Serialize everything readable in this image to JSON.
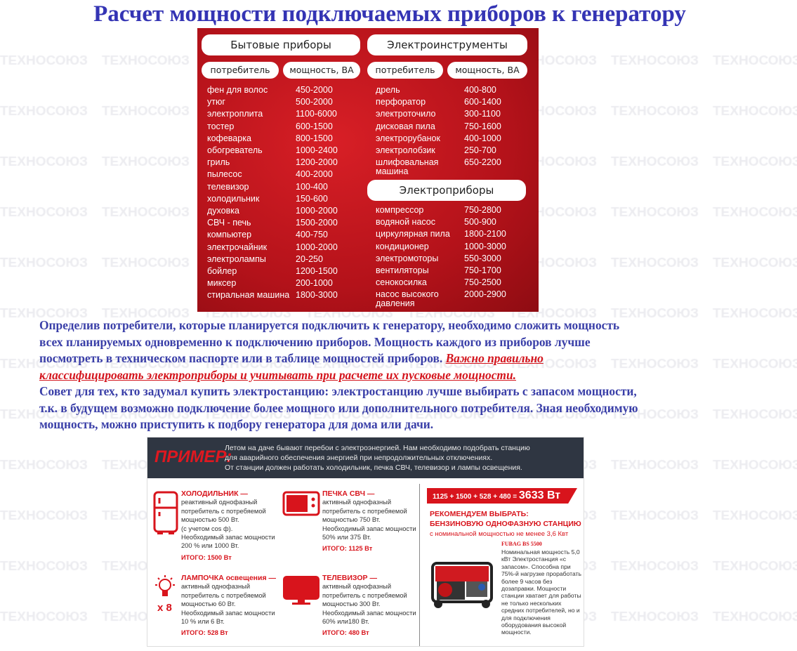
{
  "title": "Расчет мощности подключаемых приборов к генератору",
  "watermark": "ТЕХНОСОЮЗ",
  "table": {
    "household": {
      "heading": "Бытовые приборы",
      "col_consumer": "потребитель",
      "col_power": "мощность, ВА",
      "rows": [
        [
          "фен для волос",
          "450-2000"
        ],
        [
          "утюг",
          "500-2000"
        ],
        [
          "электроплита",
          "1100-6000"
        ],
        [
          "тостер",
          "600-1500"
        ],
        [
          "кофеварка",
          "800-1500"
        ],
        [
          "обогреватель",
          "1000-2400"
        ],
        [
          "гриль",
          "1200-2000"
        ],
        [
          "пылесос",
          "400-2000"
        ],
        [
          "телевизор",
          "100-400"
        ],
        [
          "холодильник",
          "150-600"
        ],
        [
          "духовка",
          "1000-2000"
        ],
        [
          "СВЧ - печь",
          "1500-2000"
        ],
        [
          "компьютер",
          "400-750"
        ],
        [
          "электрочайник",
          "1000-2000"
        ],
        [
          "электролампы",
          "20-250"
        ],
        [
          "бойлер",
          "1200-1500"
        ],
        [
          "миксер",
          "200-1000"
        ],
        [
          "стиральная машина",
          "1800-3000"
        ]
      ]
    },
    "tools": {
      "heading": "Электроинструменты",
      "col_consumer": "потребитель",
      "col_power": "мощность, ВА",
      "rows": [
        [
          "дрель",
          "400-800"
        ],
        [
          "перфоратор",
          "600-1400"
        ],
        [
          "электроточило",
          "300-1100"
        ],
        [
          "дисковая пила",
          "750-1600"
        ],
        [
          "электрорубанок",
          "400-1000"
        ],
        [
          "электролобзик",
          "250-700"
        ],
        [
          "шлифовальная машина",
          "650-2200"
        ]
      ]
    },
    "appliances": {
      "heading": "Электроприборы",
      "rows": [
        [
          "компрессор",
          "750-2800"
        ],
        [
          "водяной насос",
          "500-900"
        ],
        [
          "циркулярная пила",
          "1800-2100"
        ],
        [
          "кондиционер",
          "1000-3000"
        ],
        [
          "электромоторы",
          "550-3000"
        ],
        [
          "вентиляторы",
          "750-1700"
        ],
        [
          "сенокосилка",
          "750-2500"
        ],
        [
          "насос высокого давления",
          "2000-2900"
        ]
      ]
    }
  },
  "paragraph": {
    "line1": "Определив потребители, которые планируется подключить к генератору, необходимо сложить мощность",
    "line2": "всех планируемых одновременно к подключению приборов. Мощность каждого из приборов лучше",
    "line3": "посмотреть в техническом паспорте или в таблице мощностей приборов. ",
    "emph1": "Важно правильно",
    "emph2": "классифицировать электроприборы и учитывать при расчете их пусковые мощности.",
    "line5": "Совет для тех, кто задумал купить электростанцию: электростанцию лучше выбирать с запасом мощности,",
    "line6": "т.к. в будущем возможно подключение более мощного или дополнительного потребителя. Зная необходимую",
    "line7": "мощность, можно приступить к подбору генератора для дома или дачи."
  },
  "example": {
    "label": "ПРИМЕР:",
    "intro1": "Летом на даче бывают перебои с электроэнергией. Нам необходимо подобрать станцию",
    "intro2": "для аварийного обеспечения энергией при непродолжительных отключениях.",
    "intro3": "От станции должен работать холодильник, печка СВЧ, телевизор и лампы освещения.",
    "cards": [
      {
        "title": "ХОЛОДИЛЬНИК —",
        "lines": [
          "реактивный однофазный",
          "потребитель с потребяемой",
          "мощностью 500 Вт.",
          "(с учетом cos ф).",
          "Необходимый запас мощности",
          "200 % или 1000 Вт."
        ],
        "total": "ИТОГО: 1500 Вт"
      },
      {
        "title": "ПЕЧКА СВЧ —",
        "lines": [
          "активный однофазный",
          "потребитель с потребяемой",
          "мощностью 750 Вт.",
          "Необходимый запас мощности",
          "50% или 375 Вт."
        ],
        "total": "ИТОГО: 1125 Вт"
      },
      {
        "title": "ЛАМПОЧКА освещения —",
        "lines": [
          "активный однофазный",
          "потребитель с потребяемой",
          "мощностью 60 Вт.",
          "Необходимый запас мощности",
          "10 % или 6 Вт."
        ],
        "total": "ИТОГО: 528 Вт",
        "multiplier": "x 8"
      },
      {
        "title": "ТЕЛЕВИЗОР —",
        "lines": [
          "активный однофазный",
          "потребитель с потребяемой",
          "мощностью 300 Вт.",
          "Необходимый запас мощности",
          "60% или180 Вт."
        ],
        "total": "ИТОГО: 480 Вт"
      }
    ],
    "sum_formula": "1125 + 1500 + 528 + 480 = ",
    "sum_result": "3633 Вт",
    "recommend1": "РЕКОМЕНДУЕМ ВЫБРАТЬ:",
    "recommend2": "БЕНЗИНОВУЮ ОДНОФАЗНУЮ СТАНЦИЮ",
    "recommend_sub": "с номинальной мощностью не менее 3,6 Квт",
    "generator_name": "FUBAG BS 5500",
    "generator_desc": "Номинальная мощность 5,0 кВт Электростанция «с запасом». Способна при 75%-й нагрузке проработать более 9 часов без дозаправки. Мощности станции хватает для работы не только нескольких средних потребителей, но и для подключения оборудования высокой мощности."
  },
  "colors": {
    "title": "#3434b4",
    "text": "#3a3fa8",
    "accent_red": "#d8141c",
    "table_bg": "#b4121a",
    "example_header": "#2f3642"
  }
}
